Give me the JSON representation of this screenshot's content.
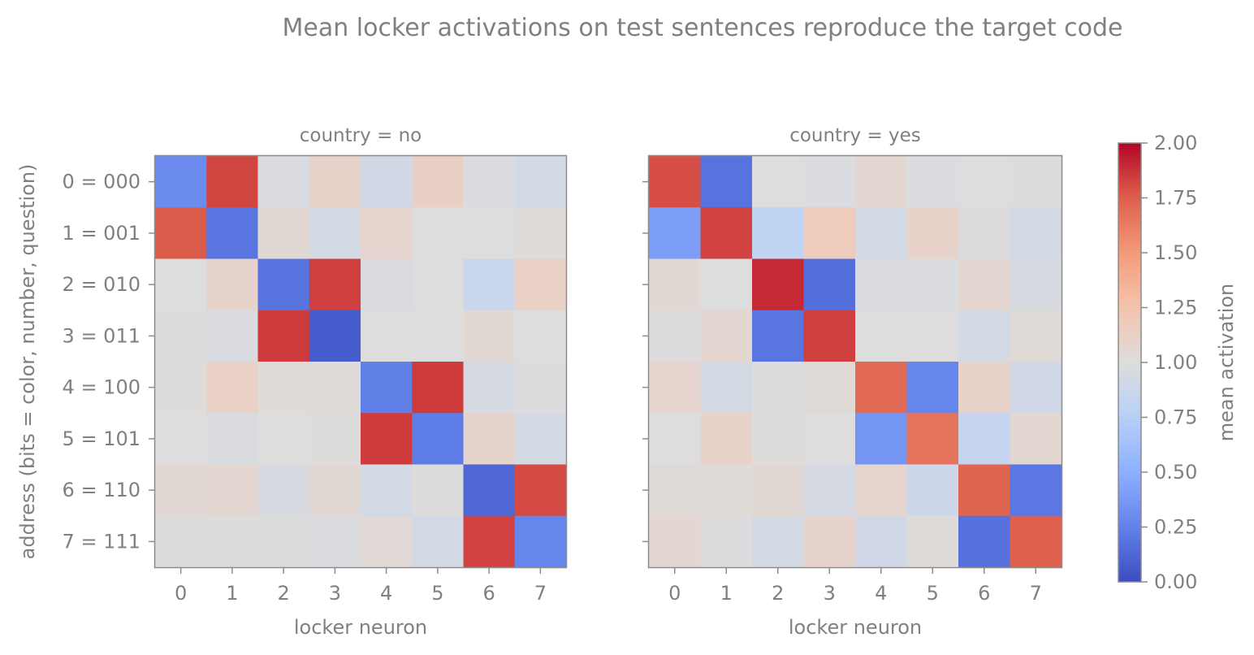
{
  "chart_data": {
    "type": "heatmap",
    "title": "Mean locker activations on test sentences reproduce the target code",
    "ylabel": "address  (bits = color, number, question)",
    "row_labels": [
      "0 = 000",
      "1 = 001",
      "2 = 010",
      "3 = 011",
      "4 = 100",
      "5 = 101",
      "6 = 110",
      "7 = 111"
    ],
    "colorscale": {
      "name": "coolwarm",
      "min": 0.0,
      "max": 2.0,
      "label": "mean activation",
      "ticks": [
        "0.00",
        "0.25",
        "0.50",
        "0.75",
        "1.00",
        "1.25",
        "1.50",
        "1.75",
        "2.00"
      ]
    },
    "panels": [
      {
        "title": "country = no",
        "xlabel": "locker neuron",
        "x_ticks": [
          "0",
          "1",
          "2",
          "3",
          "4",
          "5",
          "6",
          "7"
        ],
        "matrix": [
          [
            0.3,
            1.82,
            0.97,
            1.1,
            0.92,
            1.13,
            0.98,
            0.93
          ],
          [
            1.76,
            0.19,
            1.05,
            0.94,
            1.08,
            1.0,
            1.0,
            1.02
          ],
          [
            1.0,
            1.09,
            0.18,
            1.84,
            0.97,
            1.0,
            0.87,
            1.12
          ],
          [
            1.01,
            0.97,
            1.85,
            0.08,
            1.0,
            1.0,
            1.05,
            1.0
          ],
          [
            1.01,
            1.12,
            1.02,
            1.02,
            0.24,
            1.85,
            0.95,
            0.99
          ],
          [
            1.0,
            0.97,
            1.0,
            1.01,
            1.85,
            0.22,
            1.09,
            0.94
          ],
          [
            1.05,
            1.07,
            0.96,
            1.05,
            0.93,
            1.01,
            0.13,
            1.81
          ],
          [
            1.01,
            1.01,
            1.01,
            0.98,
            1.04,
            0.93,
            1.83,
            0.27
          ]
        ]
      },
      {
        "title": "country = yes",
        "xlabel": "locker neuron",
        "x_ticks": [
          "0",
          "1",
          "2",
          "3",
          "4",
          "5",
          "6",
          "7"
        ],
        "matrix": [
          [
            1.8,
            0.18,
            1.0,
            0.98,
            1.07,
            0.98,
            1.0,
            1.01
          ],
          [
            0.4,
            1.83,
            0.8,
            1.18,
            0.93,
            1.1,
            0.99,
            0.93
          ],
          [
            1.05,
            1.0,
            1.9,
            0.16,
            0.97,
            0.98,
            1.07,
            0.96
          ],
          [
            0.99,
            1.07,
            0.19,
            1.84,
            1.0,
            1.0,
            0.94,
            1.03
          ],
          [
            1.08,
            0.94,
            0.99,
            1.03,
            1.71,
            0.27,
            1.1,
            0.91
          ],
          [
            1.0,
            1.1,
            1.01,
            1.0,
            0.36,
            1.66,
            0.84,
            1.06
          ],
          [
            1.03,
            1.02,
            1.05,
            0.95,
            1.08,
            0.89,
            1.73,
            0.2
          ],
          [
            1.07,
            0.99,
            0.94,
            1.09,
            0.91,
            1.02,
            0.17,
            1.75
          ]
        ]
      }
    ]
  }
}
